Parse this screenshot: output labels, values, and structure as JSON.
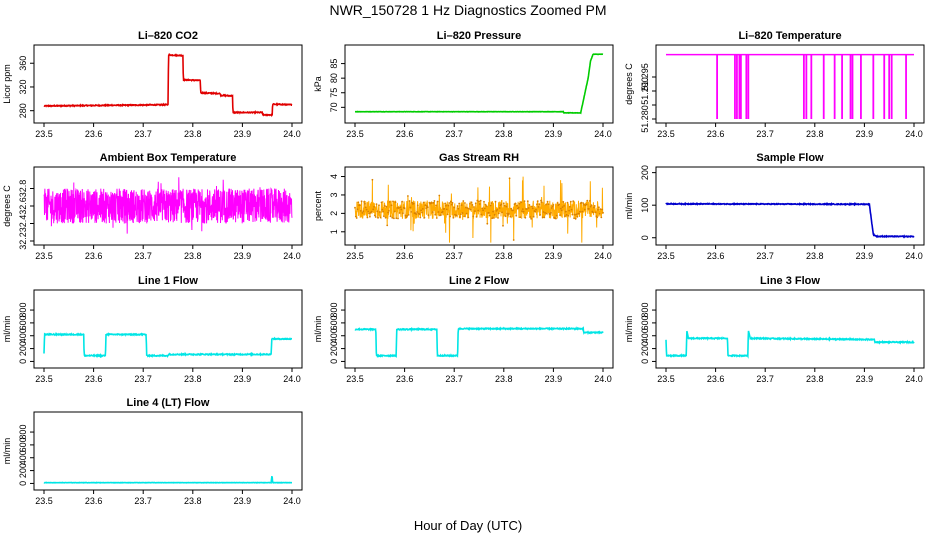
{
  "page": {
    "title": "NWR_150728  1 Hz Diagnostics Zoomed PM",
    "xlabel": "Hour of Day (UTC)"
  },
  "chart_data": [
    {
      "id": "co2",
      "type": "line",
      "title": "Li–820 CO2",
      "ylabel": "Licor ppm",
      "color": "#e00000",
      "xlim": [
        23.5,
        24.0
      ],
      "ylim": [
        266,
        384
      ],
      "xticks": [
        23.5,
        23.6,
        23.7,
        23.8,
        23.9,
        24.0
      ],
      "yticks": [
        280,
        320,
        360
      ],
      "noise": 0.8,
      "series": [
        {
          "x": [
            23.5,
            23.75,
            23.751,
            23.78,
            23.781,
            23.815,
            23.816,
            23.855,
            23.856,
            23.88,
            23.881,
            23.94,
            23.941,
            23.96,
            23.961,
            24.0
          ],
          "y": [
            288,
            290,
            374,
            373,
            332,
            331,
            310,
            309,
            306,
            305,
            277,
            277,
            273,
            273,
            291,
            290
          ]
        }
      ]
    },
    {
      "id": "pressure",
      "type": "line",
      "title": "Li–820 Pressure",
      "ylabel": "kPa",
      "color": "#00cc00",
      "xlim": [
        23.5,
        24.0
      ],
      "ylim": [
        66,
        90
      ],
      "xticks": [
        23.5,
        23.6,
        23.7,
        23.8,
        23.9,
        24.0
      ],
      "yticks": [
        70,
        75,
        80,
        85
      ],
      "noise": 0.05,
      "series": [
        {
          "x": [
            23.5,
            23.92,
            23.921,
            23.955,
            23.97,
            23.975,
            23.98,
            24.0
          ],
          "y": [
            68.5,
            68.5,
            68.1,
            68.1,
            80,
            86,
            88.2,
            88.2
          ]
        }
      ]
    },
    {
      "id": "li-temp",
      "type": "line",
      "title": "Li–820 Temperature",
      "ylabel": "degrees C",
      "color": "#ff00ff",
      "xlim": [
        23.5,
        24.0
      ],
      "ylim": [
        51.28,
        51.305
      ],
      "xticks": [
        23.5,
        23.6,
        23.7,
        23.8,
        23.9,
        24.0
      ],
      "yticks": [
        51.28,
        51.285,
        51.29,
        51.295
      ],
      "ytick_labels": [
        "51.280",
        "",
        "51.290",
        "51.295"
      ],
      "baseline": 51.303,
      "dip_value": 51.28,
      "dips_x": [
        23.603,
        23.639,
        23.643,
        23.648,
        23.651,
        23.662,
        23.666,
        23.778,
        23.783,
        23.793,
        23.818,
        23.84,
        23.855,
        23.872,
        23.876,
        23.893,
        23.918,
        23.94,
        23.95,
        23.955,
        23.984
      ]
    },
    {
      "id": "ambient-temp",
      "type": "line",
      "title": "Ambient Box Temperature",
      "ylabel": "degrees C",
      "color": "#ff00ff",
      "xlim": [
        23.5,
        24.0
      ],
      "ylim": [
        32.2,
        33.0
      ],
      "xticks": [
        23.5,
        23.6,
        23.7,
        23.8,
        23.9,
        24.0
      ],
      "yticks": [
        32.2,
        32.4,
        32.6,
        32.8
      ],
      "noise_band": {
        "center": 32.6,
        "spread": 0.2,
        "max_spread": 0.36
      }
    },
    {
      "id": "rh",
      "type": "scatter",
      "title": "Gas Stream RH",
      "ylabel": "percent",
      "color": "#ffaa00",
      "point_color": "#d88000",
      "xlim": [
        23.5,
        24.0
      ],
      "ylim": [
        0.5,
        4.3
      ],
      "xticks": [
        23.5,
        23.6,
        23.7,
        23.8,
        23.9,
        24.0
      ],
      "yticks": [
        1,
        2,
        3,
        4
      ],
      "noise_band": {
        "center": 2.2,
        "spread": 0.5,
        "max_spread": 1.8
      }
    },
    {
      "id": "sample-flow",
      "type": "line",
      "title": "Sample Flow",
      "ylabel": "ml/min",
      "color": "#0000cc",
      "xlim": [
        23.5,
        24.0
      ],
      "ylim": [
        -10,
        205
      ],
      "xticks": [
        23.5,
        23.6,
        23.7,
        23.8,
        23.9,
        24.0
      ],
      "yticks": [
        0,
        100,
        200
      ],
      "noise": 1.2,
      "series": [
        {
          "x": [
            23.5,
            23.91,
            23.918,
            23.925,
            24.0
          ],
          "y": [
            104,
            103,
            10,
            4,
            4
          ]
        }
      ]
    },
    {
      "id": "line1",
      "type": "line",
      "title": "Line 1 Flow",
      "ylabel": "ml/min",
      "color": "#00e5e5",
      "xlim": [
        23.5,
        24.0
      ],
      "ylim": [
        -40,
        1050
      ],
      "xticks": [
        23.5,
        23.6,
        23.7,
        23.8,
        23.9,
        24.0
      ],
      "yticks": [
        0,
        200,
        400,
        600,
        800
      ],
      "noise": 8,
      "series": [
        {
          "x": [
            23.5,
            23.501,
            23.58,
            23.581,
            23.624,
            23.625,
            23.706,
            23.707,
            23.75,
            23.751,
            23.958,
            23.959,
            24.0
          ],
          "y": [
            120,
            420,
            420,
            90,
            90,
            420,
            420,
            90,
            90,
            110,
            110,
            350,
            350
          ]
        }
      ]
    },
    {
      "id": "line2",
      "type": "line",
      "title": "Line 2 Flow",
      "ylabel": "ml/min",
      "color": "#00e5e5",
      "xlim": [
        23.5,
        24.0
      ],
      "ylim": [
        -40,
        1050
      ],
      "xticks": [
        23.5,
        23.6,
        23.7,
        23.8,
        23.9,
        24.0
      ],
      "yticks": [
        0,
        200,
        400,
        600,
        800
      ],
      "noise": 8,
      "series": [
        {
          "x": [
            23.5,
            23.542,
            23.543,
            23.583,
            23.584,
            23.665,
            23.666,
            23.707,
            23.708,
            23.96,
            23.961,
            24.0
          ],
          "y": [
            500,
            500,
            90,
            90,
            500,
            500,
            90,
            90,
            510,
            510,
            450,
            450
          ]
        }
      ]
    },
    {
      "id": "line3",
      "type": "line",
      "title": "Line 3 Flow",
      "ylabel": "ml/min",
      "color": "#00e5e5",
      "xlim": [
        23.5,
        24.0
      ],
      "ylim": [
        -40,
        1050
      ],
      "xticks": [
        23.5,
        23.6,
        23.7,
        23.8,
        23.9,
        24.0
      ],
      "yticks": [
        0,
        200,
        400,
        600,
        800
      ],
      "noise": 8,
      "series": [
        {
          "x": [
            23.5,
            23.501,
            23.504,
            23.541,
            23.542,
            23.545,
            23.624,
            23.625,
            23.665,
            23.666,
            23.67,
            23.92,
            23.921,
            24.0
          ],
          "y": [
            330,
            90,
            90,
            90,
            480,
            360,
            360,
            90,
            90,
            480,
            360,
            340,
            300,
            300
          ]
        }
      ]
    },
    {
      "id": "line4",
      "type": "line",
      "title": "Line 4 (LT) Flow",
      "ylabel": "ml/min",
      "color": "#00e5e5",
      "xlim": [
        23.5,
        24.0
      ],
      "ylim": [
        -40,
        1050
      ],
      "xticks": [
        23.5,
        23.6,
        23.7,
        23.8,
        23.9,
        24.0
      ],
      "yticks": [
        0,
        200,
        400,
        600,
        800
      ],
      "noise": 2,
      "series": [
        {
          "x": [
            23.5,
            23.958,
            23.959,
            23.96,
            23.961,
            24.0
          ],
          "y": [
            12,
            12,
            100,
            100,
            12,
            12
          ]
        }
      ]
    }
  ]
}
